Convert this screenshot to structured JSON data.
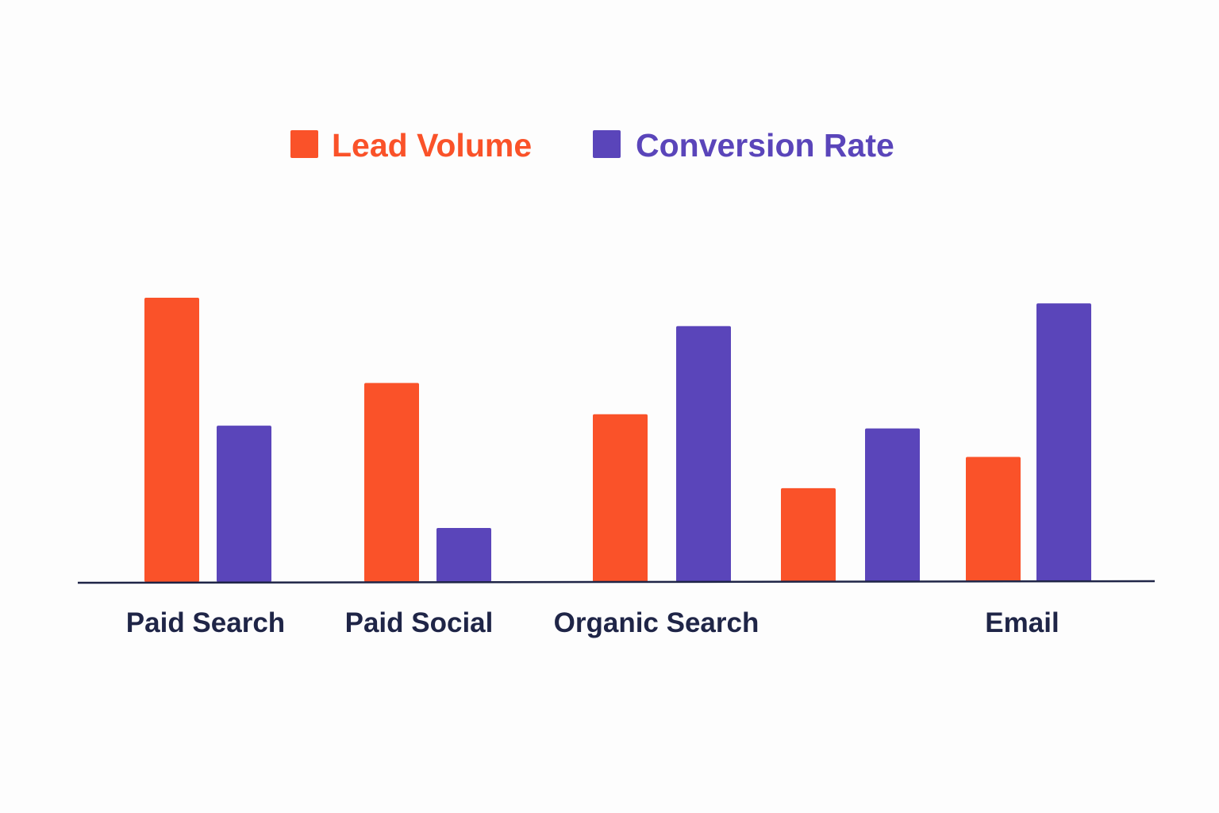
{
  "chart_data": {
    "type": "bar",
    "title": "",
    "xlabel": "",
    "ylabel": "",
    "ylim": [
      0,
      100
    ],
    "grid": false,
    "legend_position": "top-center",
    "categories": [
      "Paid Search",
      "Paid Social",
      "Organic Search",
      "",
      "Email"
    ],
    "series": [
      {
        "name": "Lead Volume",
        "color": "#fa5229",
        "values": [
          100,
          70,
          59,
          33,
          44
        ]
      },
      {
        "name": "Conversion Rate",
        "color": "#5a45ba",
        "values": [
          55,
          19,
          90,
          54,
          98
        ]
      }
    ],
    "axis_color": "#1f2547",
    "label_color": "#1f2547"
  }
}
